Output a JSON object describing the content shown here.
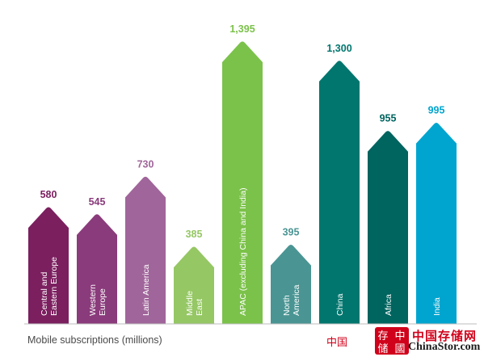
{
  "chart_data": {
    "type": "bar",
    "categories": [
      [
        "Central and",
        "Eastern Europe"
      ],
      [
        "Western",
        "Europe"
      ],
      [
        "Latin America"
      ],
      [
        "Middle",
        "East"
      ],
      [
        "APAC (excluding China and India)"
      ],
      [
        "North",
        "America"
      ],
      [
        "China"
      ],
      [
        "Africa"
      ],
      [
        "India"
      ]
    ],
    "values": [
      580,
      545,
      730,
      385,
      1395,
      395,
      1300,
      955,
      995
    ],
    "value_labels": [
      "580",
      "545",
      "730",
      "385",
      "1,395",
      "395",
      "1,300",
      "955",
      "995"
    ],
    "colors": [
      "#7b1f5f",
      "#8a3b7b",
      "#a0659a",
      "#95c764",
      "#7bc24a",
      "#4a9594",
      "#00766e",
      "#00645f",
      "#00a5cf"
    ],
    "label_colors": [
      "#7b1f5f",
      "#8a3b7b",
      "#a0659a",
      "#95c764",
      "#7bc24a",
      "#4a9594",
      "#00766e",
      "#00645f",
      "#00a5cf"
    ],
    "ylim": [
      0,
      1395
    ],
    "grid": false,
    "legend": "none"
  },
  "footnote": "Mobile subscriptions (millions)",
  "watermark": {
    "cn_left": "中国",
    "cn_brand": "中国存储网",
    "en_brand": "ChinaStor.com",
    "logo_chars": [
      "存",
      "中",
      "储",
      "國"
    ]
  }
}
